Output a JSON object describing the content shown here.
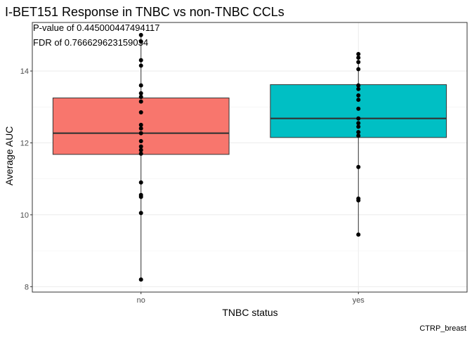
{
  "chart_data": {
    "type": "box",
    "title": "I-BET151 Response in TNBC vs non-TNBC CCLs",
    "annotations": [
      "P-value of 0.445000447494117",
      "FDR of 0.766629623159034"
    ],
    "xlabel": "TNBC status",
    "ylabel": "Average AUC",
    "caption": "CTRP_breast",
    "ylim": [
      7.85,
      15.35
    ],
    "yticks": [
      8,
      10,
      12,
      14
    ],
    "categories": [
      "no",
      "yes"
    ],
    "boxes": [
      {
        "category": "no",
        "whisker_low": 8.2,
        "q1": 11.68,
        "median": 12.27,
        "q3": 13.25,
        "whisker_high": 15.0,
        "fill": "#F8766D"
      },
      {
        "category": "yes",
        "whisker_low": 9.45,
        "q1": 12.15,
        "median": 12.68,
        "q3": 13.62,
        "whisker_high": 14.47,
        "fill": "#00BFC4"
      }
    ],
    "points": [
      {
        "category": "no",
        "values": [
          15.0,
          14.82,
          14.3,
          14.15,
          13.6,
          13.38,
          13.28,
          13.15,
          12.85,
          12.5,
          12.4,
          12.27,
          12.05,
          11.9,
          11.8,
          11.7,
          10.9,
          10.55,
          10.5,
          10.05,
          8.2
        ]
      },
      {
        "category": "yes",
        "values": [
          14.47,
          14.37,
          14.25,
          14.05,
          13.6,
          13.5,
          13.32,
          13.2,
          12.95,
          12.68,
          12.55,
          12.45,
          12.3,
          12.2,
          11.33,
          10.45,
          10.4,
          9.45
        ]
      }
    ],
    "grid": true,
    "legend": "none"
  }
}
